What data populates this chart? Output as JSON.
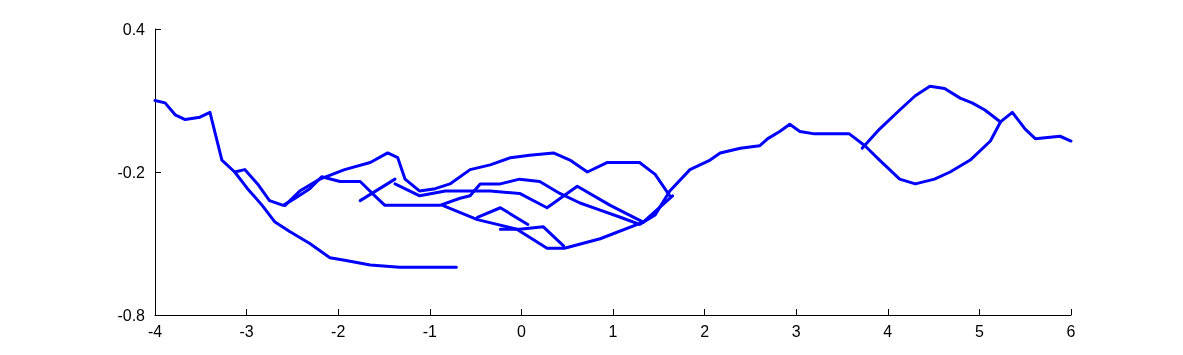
{
  "chart_data": {
    "type": "line",
    "xlim": [
      -4,
      6
    ],
    "xticks": [
      -4,
      -3,
      -2,
      -1,
      0,
      1,
      2,
      3,
      4,
      5,
      6
    ],
    "ylim": [
      -0.8,
      0.4
    ],
    "yticks": [
      -0.8,
      -0.2,
      0.4
    ],
    "line_style": "solid",
    "series": [
      {
        "color": "#0000ff",
        "x": [
          -4.0,
          -3.89,
          -3.78,
          -3.67,
          -3.51,
          -3.4,
          -3.27,
          -3.13,
          -2.99,
          -2.83,
          -2.69,
          -2.53,
          -2.31,
          -2.09,
          -1.93,
          -1.65,
          -1.33,
          -1.0,
          -0.71
        ],
        "values": [
          0.1,
          0.09,
          0.04,
          0.02,
          0.03,
          0.05,
          -0.15,
          -0.2,
          -0.27,
          -0.34,
          -0.41,
          -0.45,
          -0.5,
          -0.56,
          -0.57,
          -0.59,
          -0.6,
          -0.6,
          -0.6
        ]
      },
      {
        "color": "#0000ff",
        "x": [
          -3.13,
          -3.02,
          -2.88,
          -2.75,
          -2.6,
          -2.47,
          -2.31,
          -2.18,
          -1.98,
          -1.76,
          -1.6,
          -1.49,
          -1.11,
          -0.89,
          -0.67,
          -0.56,
          -0.45,
          -0.23,
          -0.02,
          0.2,
          0.42,
          0.64,
          0.86,
          1.08,
          1.29,
          1.46,
          1.62,
          1.84,
          2.06,
          2.17,
          2.39,
          2.6,
          2.69,
          2.82,
          2.93,
          3.04,
          3.2,
          3.58,
          3.75,
          3.91,
          4.13,
          4.3,
          4.51,
          4.68,
          4.9,
          5.12,
          5.23,
          5.36,
          5.5,
          5.61,
          5.88,
          6.0
        ],
        "values": [
          -0.2,
          -0.19,
          -0.25,
          -0.32,
          -0.34,
          -0.31,
          -0.27,
          -0.22,
          -0.24,
          -0.24,
          -0.3,
          -0.34,
          -0.34,
          -0.34,
          -0.31,
          -0.3,
          -0.25,
          -0.25,
          -0.23,
          -0.24,
          -0.29,
          -0.33,
          -0.36,
          -0.39,
          -0.42,
          -0.38,
          -0.28,
          -0.19,
          -0.15,
          -0.12,
          -0.1,
          -0.09,
          -0.06,
          -0.03,
          0.0,
          -0.03,
          -0.04,
          -0.04,
          -0.09,
          -0.15,
          -0.23,
          -0.25,
          -0.23,
          -0.2,
          -0.15,
          -0.07,
          0.01,
          0.05,
          -0.02,
          -0.06,
          -0.05,
          -0.07
        ]
      },
      {
        "color": "#0000ff",
        "x": [
          3.72,
          3.91,
          4.13,
          4.3,
          4.46,
          4.62,
          4.79,
          4.92,
          5.06,
          5.23
        ],
        "values": [
          -0.1,
          -0.02,
          0.06,
          0.12,
          0.16,
          0.15,
          0.11,
          0.09,
          0.06,
          0.01
        ]
      },
      {
        "color": "#0000ff",
        "x": [
          -2.58,
          -2.42,
          -2.2,
          -1.93,
          -1.65,
          -1.46,
          -1.35,
          -1.27,
          -1.11,
          -0.94,
          -0.78,
          -0.56,
          -0.34,
          -0.12,
          0.09,
          0.35,
          0.53,
          0.72,
          0.94,
          1.29,
          1.46,
          1.62
        ],
        "values": [
          -0.34,
          -0.28,
          -0.23,
          -0.19,
          -0.16,
          -0.12,
          -0.14,
          -0.23,
          -0.28,
          -0.27,
          -0.25,
          -0.19,
          -0.17,
          -0.14,
          -0.13,
          -0.12,
          -0.15,
          -0.2,
          -0.16,
          -0.16,
          -0.21,
          -0.3
        ]
      },
      {
        "color": "#0000ff",
        "x": [
          -1.38,
          -1.11,
          -0.83,
          -0.59,
          -0.34,
          -0.02,
          0.28,
          0.61,
          0.97,
          1.33
        ],
        "values": [
          -0.25,
          -0.3,
          -0.28,
          -0.28,
          -0.28,
          -0.29,
          -0.35,
          -0.26,
          -0.34,
          -0.41
        ]
      },
      {
        "color": "#0000ff",
        "x": [
          -0.86,
          -0.48,
          -0.05,
          0.28,
          0.47,
          0.86,
          1.33,
          1.65
        ],
        "values": [
          -0.34,
          -0.4,
          -0.44,
          -0.52,
          -0.52,
          -0.48,
          -0.41,
          -0.3
        ]
      },
      {
        "color": "#0000ff",
        "x": [
          -0.48,
          -0.23,
          0.07
        ],
        "values": [
          -0.39,
          -0.35,
          -0.42
        ]
      },
      {
        "color": "#0000ff",
        "x": [
          -0.23,
          -0.02,
          0.24,
          0.46
        ],
        "values": [
          -0.44,
          -0.44,
          -0.43,
          -0.51
        ]
      },
      {
        "color": "#0000ff",
        "x": [
          -1.76,
          -1.38
        ],
        "values": [
          -0.32,
          -0.23
        ]
      }
    ]
  }
}
